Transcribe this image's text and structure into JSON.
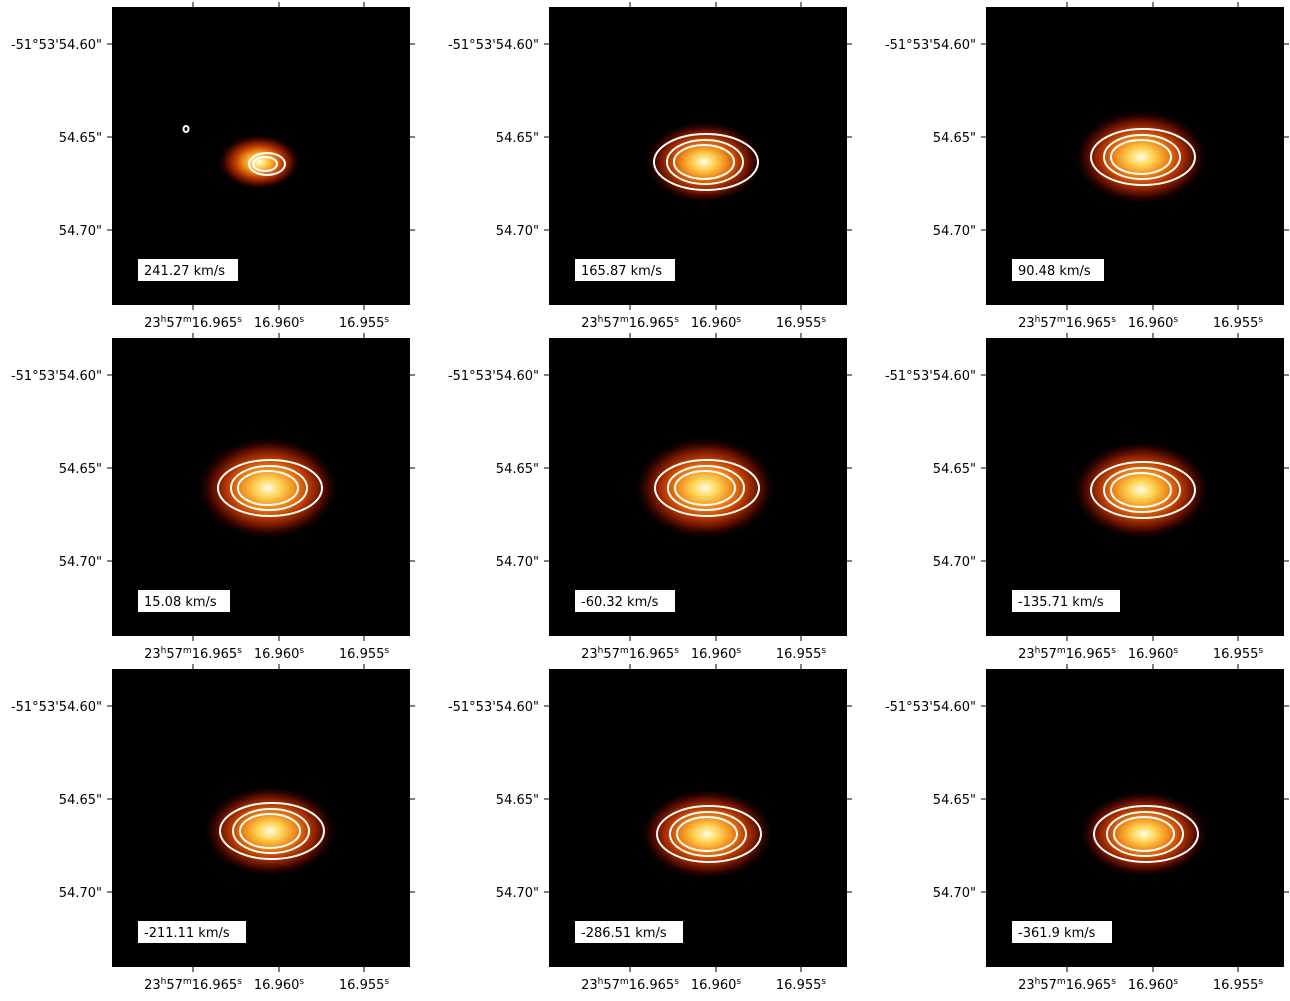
{
  "panels": [
    {
      "label": "241.27 km/s"
    },
    {
      "label": "165.87 km/s"
    },
    {
      "label": "90.48 km/s"
    },
    {
      "label": "15.08 km/s"
    },
    {
      "label": "-60.32 km/s"
    },
    {
      "label": "-135.71 km/s"
    },
    {
      "label": "-211.11 km/s"
    },
    {
      "label": "-286.51 km/s"
    },
    {
      "label": "-361.9 km/s"
    }
  ],
  "x_tick_labels": [
    [
      "23",
      "h",
      "57",
      "m",
      "16.965",
      "s"
    ],
    [
      "16.960",
      "s"
    ],
    [
      "16.955",
      "s"
    ]
  ],
  "y_tick_labels": [
    "-51°53'54.60\"",
    "54.65\"",
    "54.70\""
  ]
}
